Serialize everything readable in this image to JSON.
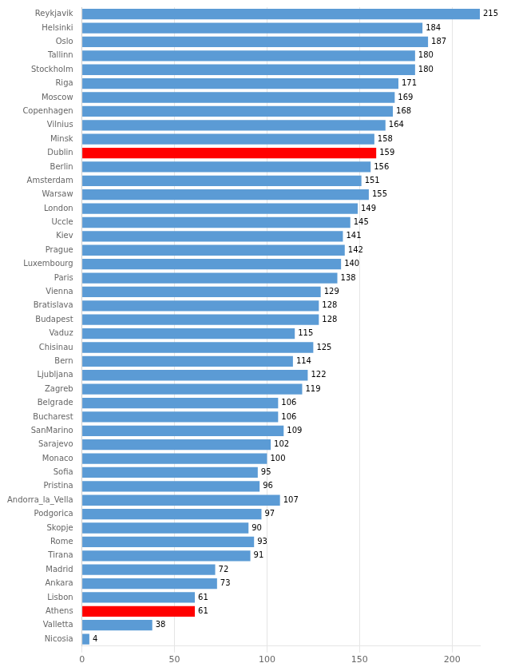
{
  "chart_data": {
    "type": "bar",
    "orientation": "horizontal",
    "categories": [
      "Reykjavik",
      "Helsinki",
      "Oslo",
      "Tallinn",
      "Stockholm",
      "Riga",
      "Moscow",
      "Copenhagen",
      "Vilnius",
      "Minsk",
      "Dublin",
      "Berlin",
      "Amsterdam",
      "Warsaw",
      "London",
      "Uccle",
      "Kiev",
      "Prague",
      "Luxembourg",
      "Paris",
      "Vienna",
      "Bratislava",
      "Budapest",
      "Vaduz",
      "Chisinau",
      "Bern",
      "Ljubljana",
      "Zagreb",
      "Belgrade",
      "Bucharest",
      "SanMarino",
      "Sarajevo",
      "Monaco",
      "Sofia",
      "Pristina",
      "Andorra_la_Vella",
      "Podgorica",
      "Skopje",
      "Rome",
      "Tirana",
      "Madrid",
      "Ankara",
      "Lisbon",
      "Athens",
      "Valletta",
      "Nicosia"
    ],
    "values": [
      215,
      184,
      187,
      180,
      180,
      171,
      169,
      168,
      164,
      158,
      159,
      156,
      151,
      155,
      149,
      145,
      141,
      142,
      140,
      138,
      129,
      128,
      128,
      115,
      125,
      114,
      122,
      119,
      106,
      106,
      109,
      102,
      100,
      95,
      96,
      107,
      97,
      90,
      93,
      91,
      72,
      73,
      61,
      61,
      38,
      4
    ],
    "colors": [
      "#5b9bd5",
      "#5b9bd5",
      "#5b9bd5",
      "#5b9bd5",
      "#5b9bd5",
      "#5b9bd5",
      "#5b9bd5",
      "#5b9bd5",
      "#5b9bd5",
      "#5b9bd5",
      "#ff0000",
      "#5b9bd5",
      "#5b9bd5",
      "#5b9bd5",
      "#5b9bd5",
      "#5b9bd5",
      "#5b9bd5",
      "#5b9bd5",
      "#5b9bd5",
      "#5b9bd5",
      "#5b9bd5",
      "#5b9bd5",
      "#5b9bd5",
      "#5b9bd5",
      "#5b9bd5",
      "#5b9bd5",
      "#5b9bd5",
      "#5b9bd5",
      "#5b9bd5",
      "#5b9bd5",
      "#5b9bd5",
      "#5b9bd5",
      "#5b9bd5",
      "#5b9bd5",
      "#5b9bd5",
      "#5b9bd5",
      "#5b9bd5",
      "#5b9bd5",
      "#5b9bd5",
      "#5b9bd5",
      "#5b9bd5",
      "#5b9bd5",
      "#5b9bd5",
      "#ff0000",
      "#5b9bd5",
      "#5b9bd5"
    ],
    "xlim": [
      0,
      215
    ],
    "xticks": [
      0,
      50,
      100,
      150,
      200
    ],
    "grid": true,
    "data_labels": true
  }
}
